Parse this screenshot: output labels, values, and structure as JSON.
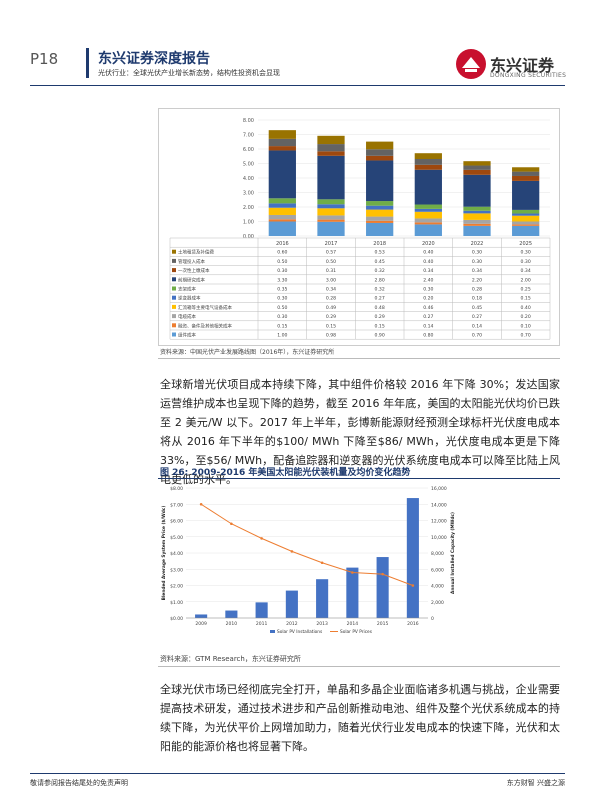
{
  "header": {
    "page": "P18",
    "title": "东兴证券深度报告",
    "subtitle": "光伏行业：全球光伏产业增长新态势，结构性投资机会显现",
    "logo_text": "东兴证券",
    "logo_en": "DONGXING SECURITIES",
    "colors": {
      "brand_blue": "#1e3a6e",
      "logo_red": "#c8102e"
    }
  },
  "figure1": {
    "source": "资料来源：中国光伏产业发展路线图（2016年），东兴证券研究所",
    "chart_data": {
      "type": "bar",
      "stacked": true,
      "categories": [
        "2016",
        "2017",
        "2018",
        "2020",
        "2022",
        "2025"
      ],
      "ylim": [
        0,
        8
      ],
      "yticks": [
        "0.00",
        "1.00",
        "2.00",
        "3.00",
        "4.00",
        "5.00",
        "6.00",
        "7.00",
        "8.00"
      ],
      "series": [
        {
          "name": "组件成本",
          "color": "#5b9bd5",
          "values": [
            "1.00",
            "0.98",
            "0.90",
            "0.80",
            "0.70",
            "0.70"
          ]
        },
        {
          "name": "融资、备件及其他相关成本",
          "color": "#ed7d31",
          "values": [
            "0.15",
            "0.15",
            "0.15",
            "0.14",
            "0.14",
            "0.10"
          ]
        },
        {
          "name": "电缆成本",
          "color": "#a5a5a5",
          "values": [
            "0.30",
            "0.29",
            "0.29",
            "0.27",
            "0.27",
            "0.20"
          ]
        },
        {
          "name": "汇流箱等主要电气设备成本",
          "color": "#ffc000",
          "values": [
            "0.50",
            "0.49",
            "0.48",
            "0.46",
            "0.45",
            "0.40"
          ]
        },
        {
          "name": "逆变器成本",
          "color": "#4472c4",
          "values": [
            "0.30",
            "0.28",
            "0.27",
            "0.20",
            "0.18",
            "0.15"
          ]
        },
        {
          "name": "支架成本",
          "color": "#70ad47",
          "values": [
            "0.35",
            "0.34",
            "0.32",
            "0.30",
            "0.28",
            "0.25"
          ]
        },
        {
          "name": "前期研究成本",
          "color": "#264478",
          "values": [
            "3.30",
            "3.00",
            "2.80",
            "2.40",
            "2.20",
            "2.00"
          ]
        },
        {
          "name": "一次性上缴成本",
          "color": "#9e480e",
          "values": [
            "0.30",
            "0.31",
            "0.32",
            "0.34",
            "0.34",
            "0.34"
          ]
        },
        {
          "name": "管理投入成本",
          "color": "#636363",
          "values": [
            "0.50",
            "0.50",
            "0.45",
            "0.40",
            "0.30",
            "0.30"
          ]
        },
        {
          "name": "土地租赁及补偿费",
          "color": "#997300",
          "values": [
            "0.60",
            "0.57",
            "0.53",
            "0.40",
            "0.30",
            "0.30"
          ]
        }
      ]
    }
  },
  "paragraph1": "全球新增光伏项目成本持续下降，其中组件价格较 2016 年下降 30%；发达国家运营维护成本也呈现下降的趋势，截至 2016 年年底，美国的太阳能光伏均价已跌至 2 美元/W 以下。2017 年上半年，彭博新能源财经预测全球标杆光伏度电成本将从 2016 年下半年的$100/ MWh 下降至$86/ MWh，光伏度电成本更是下降 33%，至$56/ MWh，配备追踪器和逆变器的光伏系统度电成本可以降至比陆上风电更低的水平。",
  "figure2": {
    "label": "图 26:",
    "title": "2009-2016 年美国太阳能光伏装机量及均价变化趋势",
    "source": "资料来源：GTM Research，东兴证券研究所",
    "chart_data": {
      "type": "bar",
      "x": [
        "2009",
        "2010",
        "2011",
        "2012",
        "2013",
        "2014",
        "2015",
        "2016"
      ],
      "series": [
        {
          "name": "Solar PV Installations",
          "type": "bar",
          "axis": "right",
          "color": "#4472c4",
          "values": [
            435,
            918,
            1924,
            3373,
            4776,
            6201,
            7501,
            14762
          ]
        },
        {
          "name": "Solar PV Prices",
          "type": "line",
          "axis": "left",
          "color": "#ed7d31",
          "values": [
            7.0,
            5.8,
            4.9,
            4.1,
            3.4,
            2.8,
            2.7,
            2.0
          ]
        }
      ],
      "yleft": {
        "label": "Blended Average System Price ($/Wdc)",
        "lim": [
          0,
          8
        ],
        "ticks": [
          "$0.00",
          "$1.00",
          "$2.00",
          "$3.00",
          "$4.00",
          "$5.00",
          "$6.00",
          "$7.00",
          "$8.00"
        ]
      },
      "yright": {
        "label": "Annual Installed Capacity (MWdc)",
        "lim": [
          0,
          16000
        ],
        "ticks": [
          "0",
          "2,000",
          "4,000",
          "6,000",
          "8,000",
          "10,000",
          "12,000",
          "14,000",
          "16,000"
        ]
      }
    }
  },
  "paragraph2": "全球光伏市场已经彻底完全打开，单晶和多晶企业面临诸多机遇与挑战，企业需要提高技术研发，通过技术进步和产品创新推动电池、组件及整个光伏系统成本的持续下降，为光伏平价上网增加助力，随着光伏行业发电成本的快速下降，光伏和太阳能的能源价格也将显著下降。",
  "footer": {
    "left": "敬请参阅报告结尾处的免责声明",
    "right": "东方财智 兴盛之源"
  }
}
